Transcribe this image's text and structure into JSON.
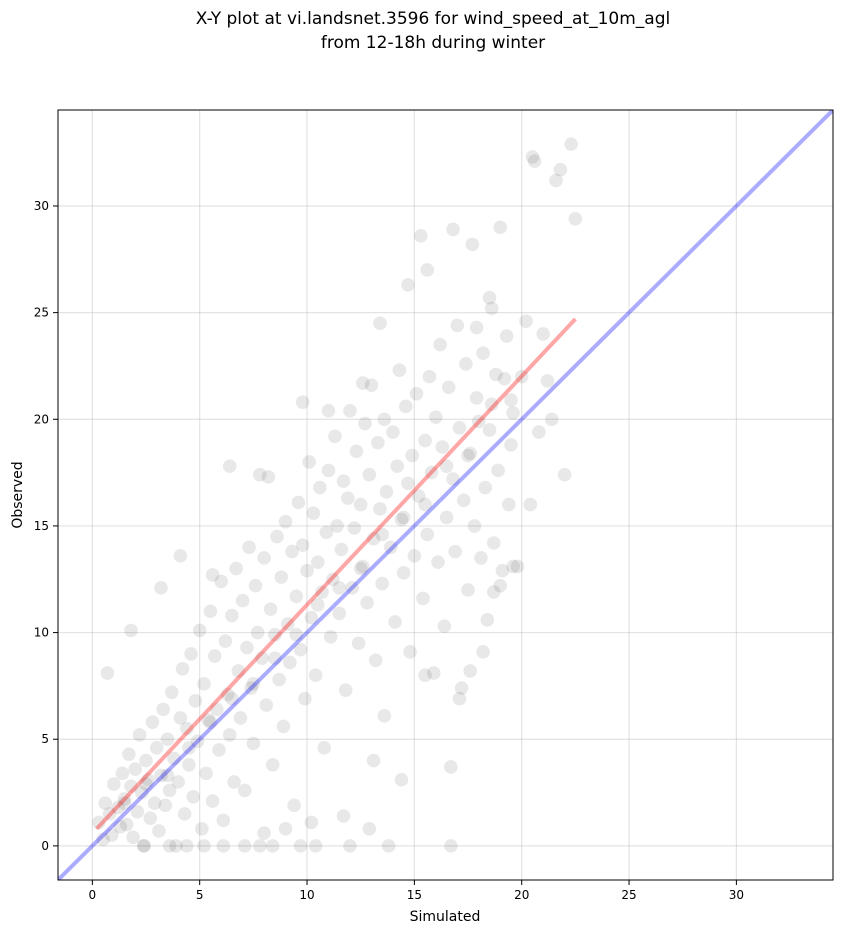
{
  "chart_data": {
    "type": "scatter",
    "title_lines": [
      "X-Y plot at vi.landsnet.3596 for wind_speed_at_10m_agl",
      "from 12-18h during winter"
    ],
    "xlabel": "Simulated",
    "ylabel": "Observed",
    "xlim": [
      -1.6,
      34.5
    ],
    "ylim": [
      -1.6,
      34.5
    ],
    "x_ticks": [
      0,
      5,
      10,
      15,
      20,
      25,
      30
    ],
    "y_ticks": [
      0,
      5,
      10,
      15,
      20,
      25,
      30
    ],
    "grid": true,
    "point_color": "#000000",
    "point_opacity": 0.09,
    "identity_line": {
      "color": "#0000ff",
      "opacity": 0.33
    },
    "fit_line": {
      "color": "#ff0000",
      "opacity": 0.35,
      "x": [
        0.2,
        22.5
      ],
      "y": [
        0.8,
        24.7
      ]
    },
    "points": [
      [
        0.3,
        1.1
      ],
      [
        0.5,
        0.3
      ],
      [
        0.6,
        2.0
      ],
      [
        0.8,
        1.5
      ],
      [
        0.9,
        0.5
      ],
      [
        1.0,
        2.9
      ],
      [
        1.2,
        1.8
      ],
      [
        1.3,
        0.9
      ],
      [
        1.4,
        3.4
      ],
      [
        1.5,
        2.2
      ],
      [
        1.6,
        1.0
      ],
      [
        1.7,
        4.3
      ],
      [
        1.8,
        2.8
      ],
      [
        1.9,
        0.4
      ],
      [
        2.0,
        3.6
      ],
      [
        2.1,
        1.6
      ],
      [
        2.2,
        5.2
      ],
      [
        2.3,
        2.5
      ],
      [
        2.4,
        0.0
      ],
      [
        2.5,
        4.0
      ],
      [
        2.6,
        3.1
      ],
      [
        2.7,
        1.3
      ],
      [
        2.8,
        5.8
      ],
      [
        2.9,
        2.0
      ],
      [
        3.0,
        4.6
      ],
      [
        3.1,
        0.7
      ],
      [
        3.2,
        3.3
      ],
      [
        3.3,
        6.4
      ],
      [
        3.4,
        1.9
      ],
      [
        3.5,
        5.0
      ],
      [
        3.6,
        2.6
      ],
      [
        3.7,
        7.2
      ],
      [
        3.8,
        4.1
      ],
      [
        3.9,
        0.0
      ],
      [
        4.0,
        3.0
      ],
      [
        4.1,
        6.0
      ],
      [
        4.2,
        8.3
      ],
      [
        4.3,
        1.5
      ],
      [
        4.4,
        5.5
      ],
      [
        4.5,
        3.8
      ],
      [
        4.6,
        9.0
      ],
      [
        4.7,
        2.3
      ],
      [
        4.8,
        6.8
      ],
      [
        4.9,
        4.9
      ],
      [
        5.0,
        10.1
      ],
      [
        5.1,
        0.8
      ],
      [
        5.2,
        7.6
      ],
      [
        5.3,
        3.4
      ],
      [
        5.4,
        5.9
      ],
      [
        5.5,
        11.0
      ],
      [
        5.6,
        2.1
      ],
      [
        5.7,
        8.9
      ],
      [
        5.8,
        6.4
      ],
      [
        5.9,
        4.5
      ],
      [
        6.0,
        12.4
      ],
      [
        6.1,
        1.2
      ],
      [
        6.2,
        9.6
      ],
      [
        6.3,
        7.1
      ],
      [
        6.4,
        5.2
      ],
      [
        6.5,
        10.8
      ],
      [
        6.6,
        3.0
      ],
      [
        6.7,
        13.0
      ],
      [
        6.8,
        8.2
      ],
      [
        6.9,
        6.0
      ],
      [
        7.0,
        11.5
      ],
      [
        7.1,
        2.6
      ],
      [
        7.2,
        9.3
      ],
      [
        7.3,
        14.0
      ],
      [
        7.4,
        7.4
      ],
      [
        7.5,
        4.8
      ],
      [
        7.6,
        12.2
      ],
      [
        7.7,
        10.0
      ],
      [
        7.8,
        0.0
      ],
      [
        7.9,
        8.8
      ],
      [
        8.0,
        13.5
      ],
      [
        8.1,
        6.6
      ],
      [
        8.2,
        17.3
      ],
      [
        8.3,
        11.1
      ],
      [
        8.4,
        3.8
      ],
      [
        8.5,
        9.9
      ],
      [
        8.6,
        14.5
      ],
      [
        8.7,
        7.8
      ],
      [
        8.8,
        12.6
      ],
      [
        8.9,
        5.6
      ],
      [
        9.0,
        15.2
      ],
      [
        9.1,
        10.4
      ],
      [
        9.2,
        8.6
      ],
      [
        9.3,
        13.8
      ],
      [
        9.4,
        1.9
      ],
      [
        9.5,
        11.7
      ],
      [
        9.6,
        16.1
      ],
      [
        9.7,
        9.2
      ],
      [
        9.8,
        14.1
      ],
      [
        9.9,
        6.9
      ],
      [
        10.0,
        12.9
      ],
      [
        10.1,
        18.0
      ],
      [
        10.2,
        10.7
      ],
      [
        10.3,
        15.6
      ],
      [
        10.4,
        8.0
      ],
      [
        10.5,
        13.3
      ],
      [
        10.6,
        16.8
      ],
      [
        10.7,
        11.9
      ],
      [
        10.8,
        4.6
      ],
      [
        10.9,
        14.7
      ],
      [
        11.0,
        17.6
      ],
      [
        11.1,
        9.8
      ],
      [
        11.2,
        12.5
      ],
      [
        11.3,
        19.2
      ],
      [
        11.4,
        15.0
      ],
      [
        11.5,
        10.9
      ],
      [
        11.6,
        13.9
      ],
      [
        11.7,
        17.1
      ],
      [
        11.8,
        7.3
      ],
      [
        11.9,
        16.3
      ],
      [
        12.0,
        20.4
      ],
      [
        12.1,
        12.1
      ],
      [
        12.2,
        14.9
      ],
      [
        12.3,
        18.5
      ],
      [
        12.4,
        9.5
      ],
      [
        12.5,
        16.0
      ],
      [
        12.6,
        13.1
      ],
      [
        12.7,
        19.8
      ],
      [
        12.8,
        11.4
      ],
      [
        12.9,
        17.4
      ],
      [
        13.0,
        21.6
      ],
      [
        13.1,
        14.4
      ],
      [
        13.2,
        8.7
      ],
      [
        13.3,
        18.9
      ],
      [
        13.4,
        15.8
      ],
      [
        13.5,
        12.3
      ],
      [
        13.6,
        20.0
      ],
      [
        13.7,
        16.6
      ],
      [
        13.8,
        0.0
      ],
      [
        13.9,
        14.0
      ],
      [
        14.0,
        19.4
      ],
      [
        14.1,
        10.5
      ],
      [
        14.2,
        17.8
      ],
      [
        14.3,
        22.3
      ],
      [
        14.4,
        15.3
      ],
      [
        14.5,
        12.8
      ],
      [
        14.6,
        20.6
      ],
      [
        14.7,
        17.0
      ],
      [
        14.8,
        9.1
      ],
      [
        14.9,
        18.3
      ],
      [
        15.0,
        13.6
      ],
      [
        15.1,
        21.2
      ],
      [
        15.2,
        16.4
      ],
      [
        15.3,
        28.6
      ],
      [
        15.4,
        11.6
      ],
      [
        15.5,
        19.0
      ],
      [
        15.6,
        14.6
      ],
      [
        15.7,
        22.0
      ],
      [
        15.8,
        17.5
      ],
      [
        15.9,
        8.1
      ],
      [
        16.0,
        20.1
      ],
      [
        16.1,
        13.3
      ],
      [
        16.2,
        23.5
      ],
      [
        16.3,
        18.7
      ],
      [
        16.4,
        10.3
      ],
      [
        16.5,
        15.4
      ],
      [
        16.6,
        21.5
      ],
      [
        16.7,
        0.0
      ],
      [
        16.8,
        17.2
      ],
      [
        16.9,
        13.8
      ],
      [
        17.0,
        24.4
      ],
      [
        17.1,
        19.6
      ],
      [
        17.2,
        7.4
      ],
      [
        17.3,
        16.2
      ],
      [
        17.4,
        22.6
      ],
      [
        17.5,
        12.0
      ],
      [
        17.6,
        18.4
      ],
      [
        17.7,
        28.2
      ],
      [
        17.8,
        15.0
      ],
      [
        17.9,
        21.0
      ],
      [
        18.0,
        19.9
      ],
      [
        18.1,
        13.5
      ],
      [
        18.2,
        23.1
      ],
      [
        18.3,
        16.8
      ],
      [
        18.4,
        10.6
      ],
      [
        18.5,
        25.7
      ],
      [
        18.6,
        20.7
      ],
      [
        18.7,
        14.2
      ],
      [
        18.8,
        22.1
      ],
      [
        18.9,
        17.6
      ],
      [
        19.0,
        29.0
      ],
      [
        19.1,
        12.9
      ],
      [
        19.2,
        21.9
      ],
      [
        19.3,
        23.9
      ],
      [
        19.4,
        16.0
      ],
      [
        19.5,
        18.8
      ],
      [
        19.6,
        20.3
      ],
      [
        19.8,
        13.1
      ],
      [
        20.0,
        22.0
      ],
      [
        20.2,
        24.6
      ],
      [
        20.4,
        16.0
      ],
      [
        20.5,
        32.3
      ],
      [
        20.6,
        32.1
      ],
      [
        20.8,
        19.4
      ],
      [
        21.0,
        24.0
      ],
      [
        21.2,
        21.8
      ],
      [
        21.4,
        20.0
      ],
      [
        21.6,
        31.2
      ],
      [
        21.8,
        31.7
      ],
      [
        22.0,
        17.4
      ],
      [
        22.3,
        32.9
      ],
      [
        22.5,
        29.4
      ],
      [
        1.5,
        2.0
      ],
      [
        2.5,
        2.9
      ],
      [
        3.5,
        3.3
      ],
      [
        4.5,
        4.6
      ],
      [
        5.5,
        5.8
      ],
      [
        6.5,
        6.9
      ],
      [
        7.5,
        7.6
      ],
      [
        8.5,
        8.8
      ],
      [
        9.5,
        9.9
      ],
      [
        10.5,
        11.3
      ],
      [
        11.5,
        12.1
      ],
      [
        12.5,
        13.0
      ],
      [
        13.5,
        14.6
      ],
      [
        14.5,
        15.4
      ],
      [
        15.5,
        16.0
      ],
      [
        16.5,
        17.8
      ],
      [
        17.5,
        18.3
      ],
      [
        18.5,
        19.5
      ],
      [
        19.5,
        20.9
      ],
      [
        0.7,
        8.1
      ],
      [
        1.8,
        10.1
      ],
      [
        3.2,
        12.1
      ],
      [
        4.1,
        13.6
      ],
      [
        5.6,
        12.7
      ],
      [
        6.4,
        17.8
      ],
      [
        7.8,
        17.4
      ],
      [
        9.8,
        20.8
      ],
      [
        11.0,
        20.4
      ],
      [
        12.6,
        21.7
      ],
      [
        13.4,
        24.5
      ],
      [
        14.7,
        26.3
      ],
      [
        15.6,
        27.0
      ],
      [
        16.8,
        28.9
      ],
      [
        17.9,
        24.3
      ],
      [
        18.6,
        25.2
      ],
      [
        2.4,
        0.0
      ],
      [
        3.6,
        0.0
      ],
      [
        4.4,
        0.0
      ],
      [
        5.2,
        0.0
      ],
      [
        6.1,
        0.0
      ],
      [
        7.1,
        0.0
      ],
      [
        8.4,
        0.0
      ],
      [
        9.7,
        0.0
      ],
      [
        10.4,
        0.0
      ],
      [
        12.0,
        0.0
      ],
      [
        8.0,
        0.6
      ],
      [
        9.0,
        0.8
      ],
      [
        10.2,
        1.1
      ],
      [
        11.7,
        1.4
      ],
      [
        12.9,
        0.8
      ],
      [
        13.1,
        4.0
      ],
      [
        13.6,
        6.1
      ],
      [
        14.4,
        3.1
      ],
      [
        15.5,
        8.0
      ],
      [
        16.7,
        3.7
      ],
      [
        17.1,
        6.9
      ],
      [
        17.6,
        8.2
      ],
      [
        18.2,
        9.1
      ],
      [
        19.0,
        12.2
      ],
      [
        19.6,
        13.1
      ],
      [
        18.7,
        11.9
      ]
    ]
  }
}
